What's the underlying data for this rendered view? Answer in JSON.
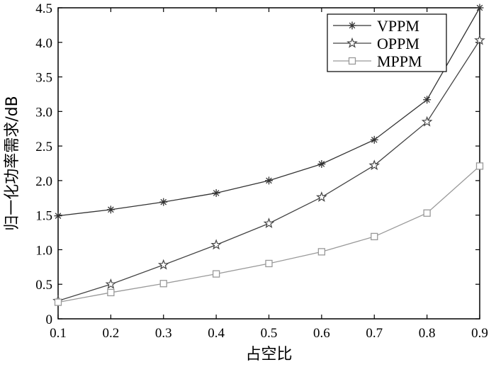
{
  "chart_data": {
    "type": "line",
    "xlabel": "占空比",
    "ylabel": "归一化功率需求/dB",
    "xlim": [
      0.1,
      0.9
    ],
    "ylim": [
      0,
      4.5
    ],
    "x": [
      0.1,
      0.2,
      0.3,
      0.4,
      0.5,
      0.6,
      0.7,
      0.8,
      0.9
    ],
    "x_tick_labels": [
      "0.1",
      "0.2",
      "0.3",
      "0.4",
      "0.5",
      "0.6",
      "0.7",
      "0.8",
      "0.9"
    ],
    "y_ticks": [
      0,
      0.5,
      1.0,
      1.5,
      2.0,
      2.5,
      3.0,
      3.5,
      4.0,
      4.5
    ],
    "y_tick_labels": [
      "0",
      "0.5",
      "1.0",
      "1.5",
      "2.0",
      "2.5",
      "3.0",
      "3.5",
      "4.0",
      "4.5"
    ],
    "grid": false,
    "legend_position": "top-right",
    "series": [
      {
        "name": "VPPM",
        "marker": "asterisk",
        "color": "#333333",
        "values": [
          1.49,
          1.58,
          1.69,
          1.82,
          2.0,
          2.24,
          2.59,
          3.17,
          4.5
        ]
      },
      {
        "name": "OPPM",
        "marker": "star",
        "color": "#444444",
        "values": [
          0.26,
          0.5,
          0.78,
          1.07,
          1.38,
          1.76,
          2.22,
          2.85,
          4.03
        ]
      },
      {
        "name": "MPPM",
        "marker": "square",
        "color": "#999999",
        "values": [
          0.24,
          0.38,
          0.51,
          0.65,
          0.8,
          0.97,
          1.19,
          1.53,
          2.21
        ]
      }
    ]
  }
}
